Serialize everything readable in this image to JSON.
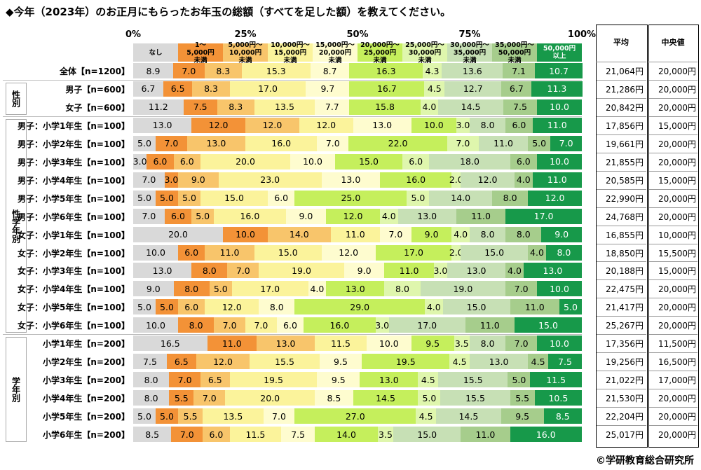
{
  "title": "◆今年（2023年）のお正月にもらったお年玉の総額（すべてを足した額）を教えてください。",
  "copyright": "©学研教育総合研究所",
  "chart_data": {
    "type": "bar",
    "orientation": "horizontal",
    "stacked": true,
    "xlim": [
      0,
      100
    ],
    "axis_ticks": [
      "0%",
      "25%",
      "50%",
      "75%",
      "100%"
    ],
    "legend": [
      "なし",
      "1～\n5,000円\n未満",
      "5,000円～\n10,000円\n未満",
      "10,000円～\n15,000円\n未満",
      "15,000円～\n20,000円\n未満",
      "20,000円～\n25,000円\n未満",
      "25,000円～\n30,000円\n未満",
      "30,000円～\n35,000円\n未満",
      "35,000円～\n50,000円\n未満",
      "50,000円\n以上"
    ],
    "colors": [
      "#d9d9d9",
      "#f39237",
      "#f8c56b",
      "#fbf39b",
      "#fefccf",
      "#c5ef5c",
      "#dff6ad",
      "#c7e0b5",
      "#a6cd8c",
      "#17994a"
    ],
    "groups": [
      {
        "label": "",
        "rows": [
          0
        ]
      },
      {
        "label": "性別",
        "rows": [
          1,
          2
        ]
      },
      {
        "label": "性学年別",
        "rows": [
          3,
          4,
          5,
          6,
          7,
          8,
          9,
          10,
          11,
          12,
          13,
          14
        ]
      },
      {
        "label": "学年別",
        "rows": [
          15,
          16,
          17,
          18,
          19,
          20
        ]
      }
    ],
    "rows": [
      {
        "label": "全体【n=1200】",
        "values": [
          8.9,
          7.0,
          8.3,
          15.3,
          8.7,
          16.3,
          4.3,
          13.6,
          7.1,
          10.7
        ],
        "mean": "21,064円",
        "median": "20,000円"
      },
      {
        "label": "男子【n=600】",
        "values": [
          6.7,
          6.5,
          8.3,
          17.0,
          9.7,
          16.7,
          4.5,
          12.7,
          6.7,
          11.3
        ],
        "mean": "21,286円",
        "median": "20,000円"
      },
      {
        "label": "女子【n=600】",
        "values": [
          11.2,
          7.5,
          8.3,
          13.5,
          7.7,
          15.8,
          4.0,
          14.5,
          7.5,
          10.0
        ],
        "mean": "20,842円",
        "median": "20,000円"
      },
      {
        "label": "男子：小学1年生【n=100】",
        "values": [
          13.0,
          12.0,
          12.0,
          12.0,
          13.0,
          10.0,
          3.0,
          8.0,
          6.0,
          11.0
        ],
        "mean": "17,856円",
        "median": "15,000円"
      },
      {
        "label": "男子：小学2年生【n=100】",
        "values": [
          5.0,
          7.0,
          13.0,
          16.0,
          7.0,
          22.0,
          7.0,
          11.0,
          5.0,
          7.0
        ],
        "mean": "19,661円",
        "median": "20,000円"
      },
      {
        "label": "男子：小学3年生【n=100】",
        "values": [
          3.0,
          6.0,
          6.0,
          20.0,
          10.0,
          15.0,
          6.0,
          18.0,
          6.0,
          10.0
        ],
        "mean": "21,855円",
        "median": "20,000円"
      },
      {
        "label": "男子：小学4年生【n=100】",
        "values": [
          7.0,
          3.0,
          9.0,
          23.0,
          13.0,
          16.0,
          2.0,
          12.0,
          4.0,
          11.0
        ],
        "mean": "20,585円",
        "median": "15,000円"
      },
      {
        "label": "男子：小学5年生【n=100】",
        "values": [
          5.0,
          5.0,
          5.0,
          15.0,
          6.0,
          25.0,
          5.0,
          14.0,
          8.0,
          12.0
        ],
        "mean": "22,990円",
        "median": "20,000円"
      },
      {
        "label": "男子：小学6年生【n=100】",
        "values": [
          7.0,
          6.0,
          5.0,
          16.0,
          9.0,
          12.0,
          4.0,
          13.0,
          11.0,
          17.0
        ],
        "mean": "24,768円",
        "median": "20,000円"
      },
      {
        "label": "女子：小学1年生【n=100】",
        "values": [
          20.0,
          10.0,
          14.0,
          11.0,
          7.0,
          9.0,
          4.0,
          8.0,
          8.0,
          9.0
        ],
        "mean": "16,855円",
        "median": "10,000円"
      },
      {
        "label": "女子：小学2年生【n=100】",
        "values": [
          10.0,
          6.0,
          11.0,
          15.0,
          12.0,
          17.0,
          2.0,
          15.0,
          4.0,
          8.0
        ],
        "mean": "18,850円",
        "median": "15,500円"
      },
      {
        "label": "女子：小学3年生【n=100】",
        "values": [
          13.0,
          8.0,
          7.0,
          19.0,
          9.0,
          11.0,
          3.0,
          13.0,
          4.0,
          13.0
        ],
        "mean": "20,188円",
        "median": "15,000円"
      },
      {
        "label": "女子：小学4年生【n=100】",
        "values": [
          9.0,
          8.0,
          5.0,
          17.0,
          4.0,
          13.0,
          8.0,
          19.0,
          7.0,
          10.0
        ],
        "mean": "22,475円",
        "median": "20,000円"
      },
      {
        "label": "女子：小学5年生【n=100】",
        "values": [
          5.0,
          5.0,
          6.0,
          12.0,
          8.0,
          29.0,
          4.0,
          15.0,
          11.0,
          5.0
        ],
        "mean": "21,417円",
        "median": "20,000円"
      },
      {
        "label": "女子：小学6年生【n=100】",
        "values": [
          10.0,
          8.0,
          7.0,
          7.0,
          6.0,
          16.0,
          3.0,
          17.0,
          11.0,
          15.0
        ],
        "mean": "25,267円",
        "median": "20,000円"
      },
      {
        "label": "小学1年生【n=200】",
        "values": [
          16.5,
          11.0,
          13.0,
          11.5,
          10.0,
          9.5,
          3.5,
          8.0,
          7.0,
          10.0
        ],
        "mean": "17,356円",
        "median": "11,500円"
      },
      {
        "label": "小学2年生【n=200】",
        "values": [
          7.5,
          6.5,
          12.0,
          15.5,
          9.5,
          19.5,
          4.5,
          13.0,
          4.5,
          7.5
        ],
        "mean": "19,256円",
        "median": "16,500円"
      },
      {
        "label": "小学3年生【n=200】",
        "values": [
          8.0,
          7.0,
          6.5,
          19.5,
          9.5,
          13.0,
          4.5,
          15.5,
          5.0,
          11.5
        ],
        "mean": "21,022円",
        "median": "17,000円"
      },
      {
        "label": "小学4年生【n=200】",
        "values": [
          8.0,
          5.5,
          7.0,
          20.0,
          8.5,
          14.5,
          5.0,
          15.5,
          5.5,
          10.5
        ],
        "mean": "21,530円",
        "median": "20,000円"
      },
      {
        "label": "小学5年生【n=200】",
        "values": [
          5.0,
          5.0,
          5.5,
          13.5,
          7.0,
          27.0,
          4.5,
          14.5,
          9.5,
          8.5
        ],
        "mean": "22,204円",
        "median": "20,000円"
      },
      {
        "label": "小学6年生【n=200】",
        "values": [
          8.5,
          7.0,
          6.0,
          11.5,
          7.5,
          14.0,
          3.5,
          15.0,
          11.0,
          16.0
        ],
        "mean": "25,017円",
        "median": "20,000円"
      }
    ],
    "table_headers": {
      "mean": "平均",
      "median": "中央値"
    }
  }
}
